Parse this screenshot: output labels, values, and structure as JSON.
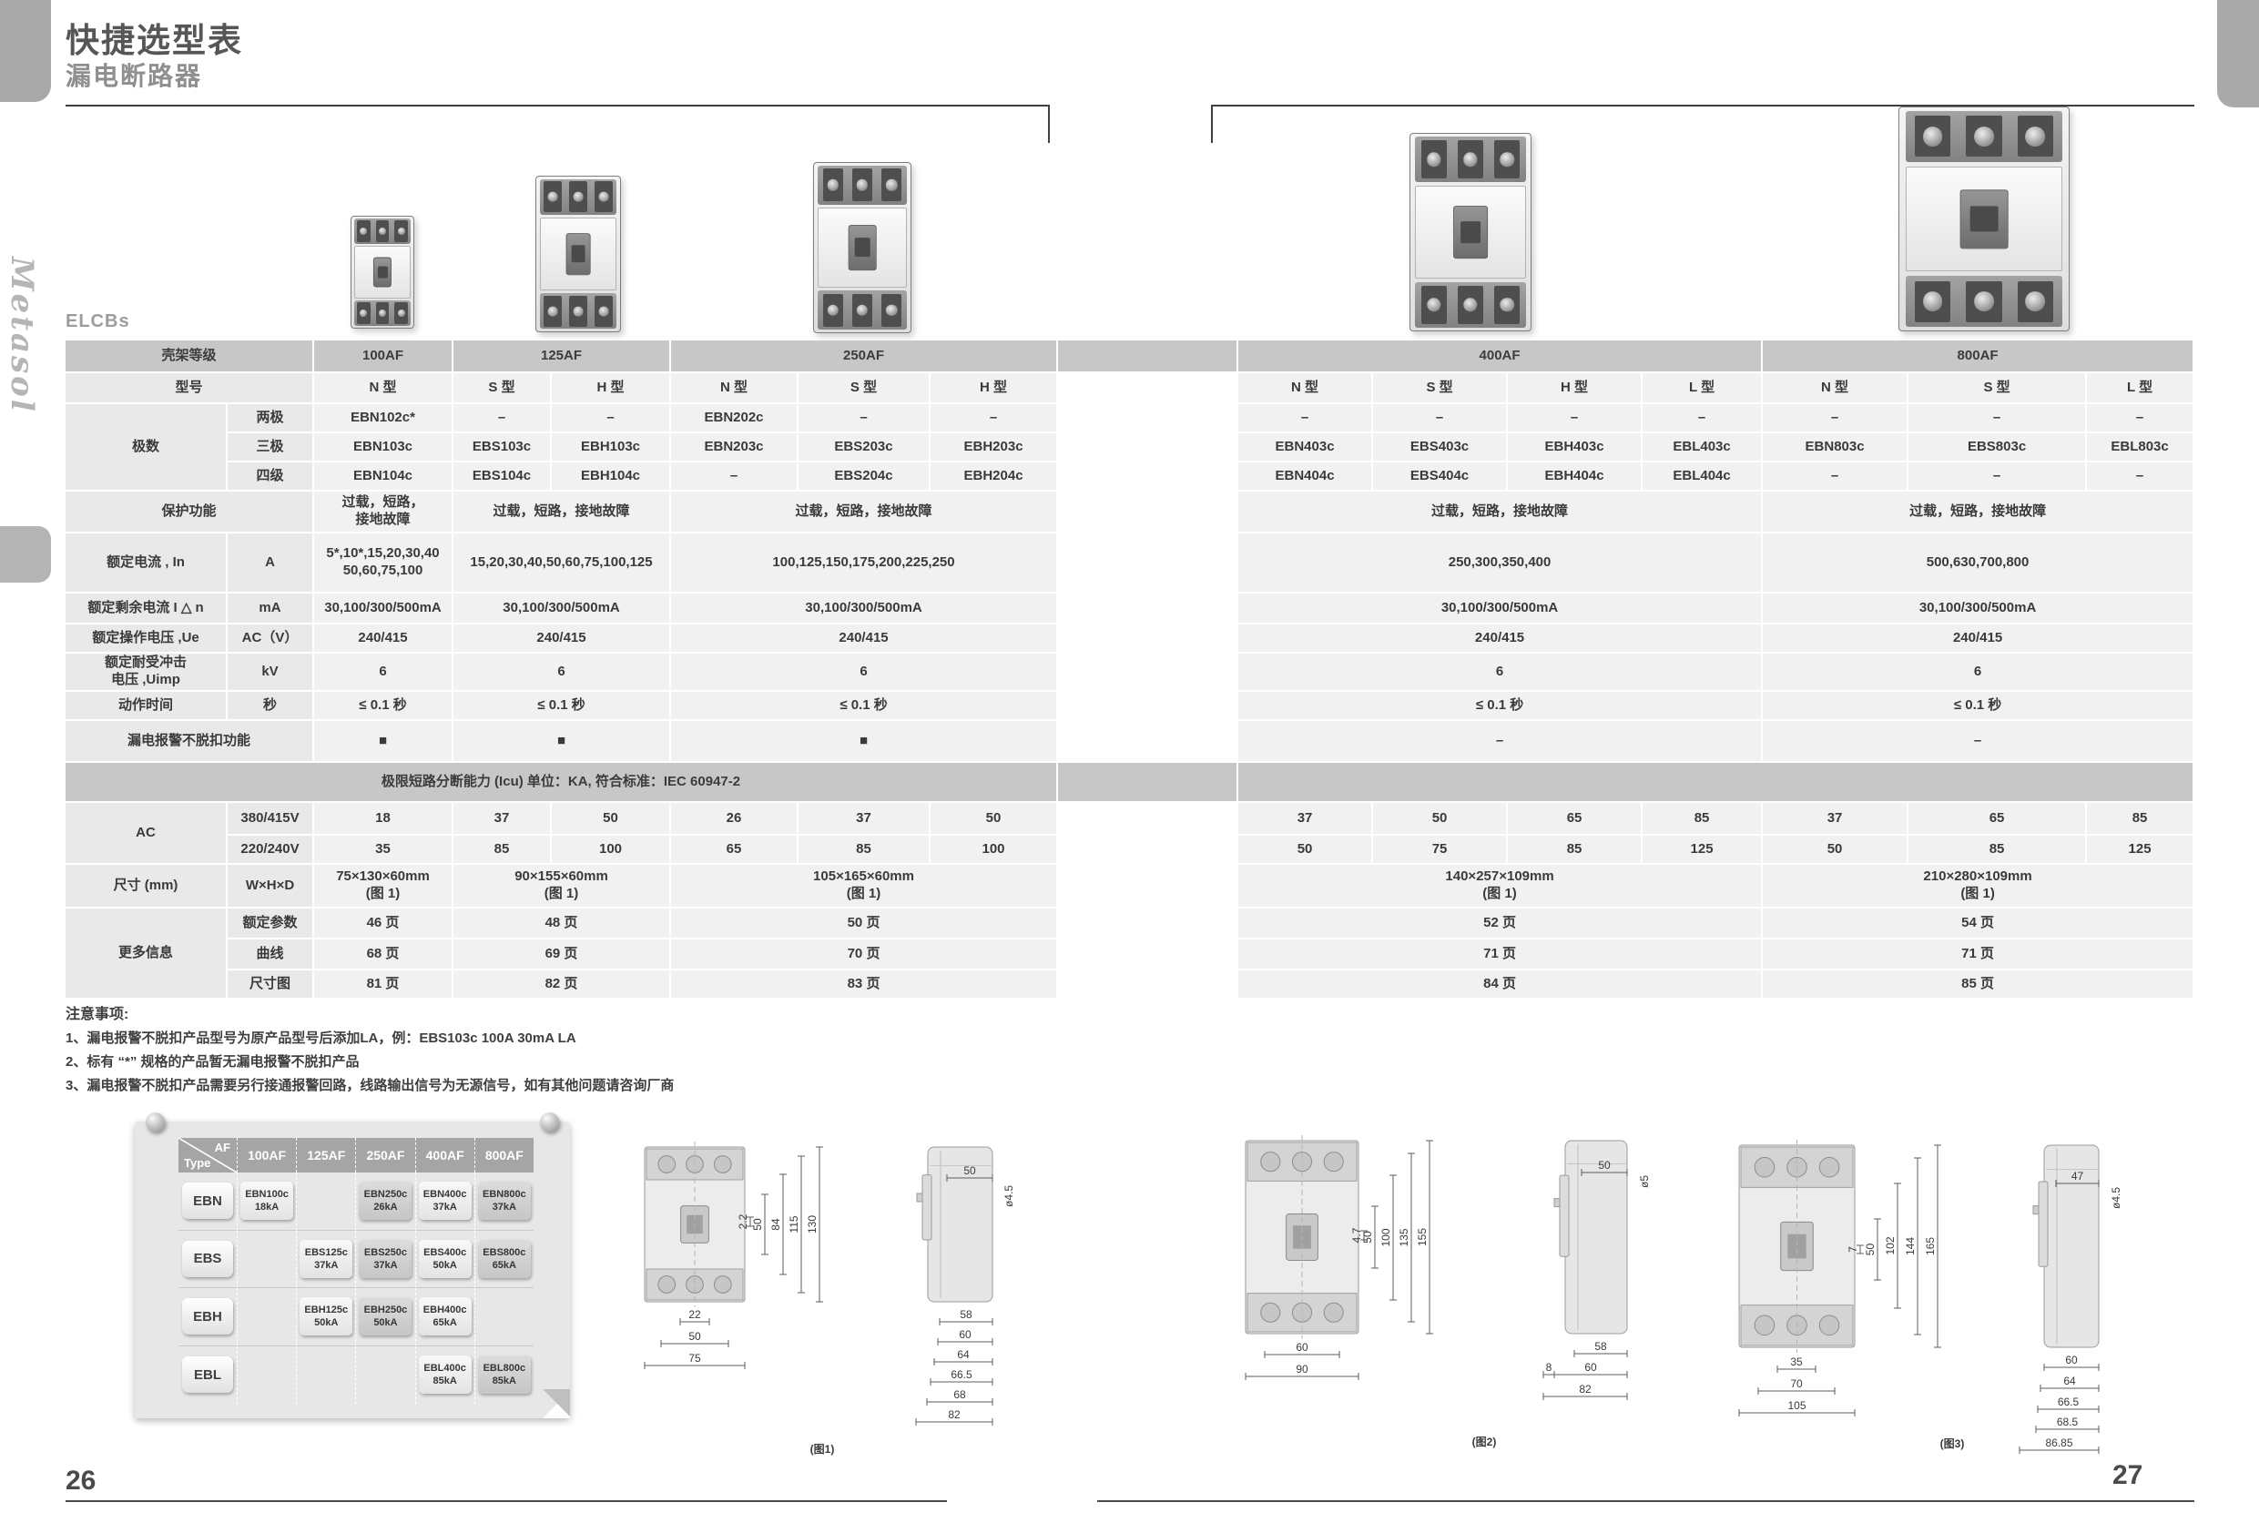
{
  "page": {
    "title": "快捷选型表",
    "subtitle": "漏电断路器",
    "brand_vertical": "Metasol",
    "product_family": "ELCBs",
    "page_number_left": "26",
    "page_number_right": "27"
  },
  "spec_table": {
    "rows": [
      {
        "h": 36,
        "cells": [
          {
            "t": "壳架等级",
            "cs": 2,
            "c": "band"
          },
          {
            "t": "100AF",
            "c": "band"
          },
          {
            "t": "125AF",
            "cs": 2,
            "c": "band"
          },
          {
            "t": "250AF",
            "cs": 3,
            "c": "band"
          },
          {
            "t": "",
            "c": "band"
          },
          {
            "t": "400AF",
            "cs": 4,
            "c": "band"
          },
          {
            "t": "800AF",
            "cs": 3,
            "c": "band"
          }
        ]
      },
      {
        "h": 34,
        "cells": [
          {
            "t": "型号",
            "cs": 2,
            "c": "lbl"
          },
          {
            "t": "N 型"
          },
          {
            "t": "S 型"
          },
          {
            "t": "H 型"
          },
          {
            "t": "N 型"
          },
          {
            "t": "S 型"
          },
          {
            "t": "H 型"
          },
          {
            "t": "",
            "c": "gut"
          },
          {
            "t": "N 型"
          },
          {
            "t": "S 型"
          },
          {
            "t": "H 型"
          },
          {
            "t": "L 型"
          },
          {
            "t": "N 型"
          },
          {
            "t": "S 型"
          },
          {
            "t": "L 型"
          }
        ]
      },
      {
        "h": 32,
        "cells": [
          {
            "t": "极数",
            "rs": 3,
            "c": "lbl top"
          },
          {
            "t": "两极",
            "c": "sub"
          },
          {
            "t": "EBN102c*"
          },
          {
            "t": "–"
          },
          {
            "t": "–"
          },
          {
            "t": "EBN202c"
          },
          {
            "t": "–"
          },
          {
            "t": "–"
          },
          {
            "t": "",
            "c": "gut"
          },
          {
            "t": "–"
          },
          {
            "t": "–"
          },
          {
            "t": "–"
          },
          {
            "t": "–"
          },
          {
            "t": "–"
          },
          {
            "t": "–"
          },
          {
            "t": "–"
          }
        ]
      },
      {
        "h": 32,
        "cells": [
          {
            "t": "三极",
            "c": "sub"
          },
          {
            "t": "EBN103c"
          },
          {
            "t": "EBS103c"
          },
          {
            "t": "EBH103c"
          },
          {
            "t": "EBN203c"
          },
          {
            "t": "EBS203c"
          },
          {
            "t": "EBH203c"
          },
          {
            "t": "",
            "c": "gut"
          },
          {
            "t": "EBN403c"
          },
          {
            "t": "EBS403c"
          },
          {
            "t": "EBH403c"
          },
          {
            "t": "EBL403c"
          },
          {
            "t": "EBN803c"
          },
          {
            "t": "EBS803c"
          },
          {
            "t": "EBL803c"
          }
        ]
      },
      {
        "h": 32,
        "cells": [
          {
            "t": "四级",
            "c": "sub"
          },
          {
            "t": "EBN104c"
          },
          {
            "t": "EBS104c"
          },
          {
            "t": "EBH104c"
          },
          {
            "t": "–"
          },
          {
            "t": "EBS204c"
          },
          {
            "t": "EBH204c"
          },
          {
            "t": "",
            "c": "gut"
          },
          {
            "t": "EBN404c"
          },
          {
            "t": "EBS404c"
          },
          {
            "t": "EBH404c"
          },
          {
            "t": "EBL404c"
          },
          {
            "t": "–"
          },
          {
            "t": "–"
          },
          {
            "t": "–"
          }
        ]
      },
      {
        "h": 46,
        "cells": [
          {
            "t": "保护功能",
            "cs": 2,
            "c": "lbl"
          },
          {
            "t": "过载，短路，\n接地故障",
            "c": "d wrap"
          },
          {
            "t": "过载，短路，接地故障",
            "cs": 2
          },
          {
            "t": "过载，短路，接地故障",
            "cs": 3
          },
          {
            "t": "",
            "c": "gut"
          },
          {
            "t": "过载，短路，接地故障",
            "cs": 4
          },
          {
            "t": "过载，短路，接地故障",
            "cs": 3
          }
        ]
      },
      {
        "h": 66,
        "cells": [
          {
            "t": "额定电流 , In",
            "c": "lbl"
          },
          {
            "t": "A",
            "c": "sub"
          },
          {
            "t": "5*,10*,15,20,30,40\n50,60,75,100",
            "c": "d wrap"
          },
          {
            "t": "15,20,30,40,50,60,75,100,125",
            "cs": 2
          },
          {
            "t": "100,125,150,175,200,225,250",
            "cs": 3
          },
          {
            "t": "",
            "c": "gut"
          },
          {
            "t": "250,300,350,400",
            "cs": 4
          },
          {
            "t": "500,630,700,800",
            "cs": 3
          }
        ]
      },
      {
        "h": 34,
        "cells": [
          {
            "t": "额定剩余电流 I △ n",
            "c": "lbl"
          },
          {
            "t": "mA",
            "c": "sub"
          },
          {
            "t": "30,100/300/500mA"
          },
          {
            "t": "30,100/300/500mA",
            "cs": 2
          },
          {
            "t": "30,100/300/500mA",
            "cs": 3
          },
          {
            "t": "",
            "c": "gut"
          },
          {
            "t": "30,100/300/500mA",
            "cs": 4
          },
          {
            "t": "30,100/300/500mA",
            "cs": 3
          }
        ]
      },
      {
        "h": 32,
        "cells": [
          {
            "t": "额定操作电压 ,Ue",
            "c": "lbl"
          },
          {
            "t": "AC（V）",
            "c": "sub"
          },
          {
            "t": "240/415"
          },
          {
            "t": "240/415",
            "cs": 2
          },
          {
            "t": "240/415",
            "cs": 3
          },
          {
            "t": "",
            "c": "gut"
          },
          {
            "t": "240/415",
            "cs": 4
          },
          {
            "t": "240/415",
            "cs": 3
          }
        ]
      },
      {
        "h": 42,
        "cells": [
          {
            "t": "额定耐受冲击\n电压 ,Uimp",
            "c": "lbl wrap"
          },
          {
            "t": "kV",
            "c": "sub"
          },
          {
            "t": "6"
          },
          {
            "t": "6",
            "cs": 2
          },
          {
            "t": "6",
            "cs": 3
          },
          {
            "t": "",
            "c": "gut"
          },
          {
            "t": "6",
            "cs": 4
          },
          {
            "t": "6",
            "cs": 3
          }
        ]
      },
      {
        "h": 32,
        "cells": [
          {
            "t": "动作时间",
            "c": "lbl"
          },
          {
            "t": "秒",
            "c": "sub"
          },
          {
            "t": "≤ 0.1 秒"
          },
          {
            "t": "≤ 0.1 秒",
            "cs": 2
          },
          {
            "t": "≤ 0.1 秒",
            "cs": 3
          },
          {
            "t": "",
            "c": "gut"
          },
          {
            "t": "≤ 0.1 秒",
            "cs": 4
          },
          {
            "t": "≤ 0.1 秒",
            "cs": 3
          }
        ]
      },
      {
        "h": 46,
        "cells": [
          {
            "t": "漏电报警不脱扣功能",
            "cs": 2,
            "c": "lbl"
          },
          {
            "t": "■",
            "c": "d sq"
          },
          {
            "t": "■",
            "cs": 2,
            "c": "d sq"
          },
          {
            "t": "■",
            "cs": 3,
            "c": "d sq"
          },
          {
            "t": "",
            "c": "gut"
          },
          {
            "t": "–",
            "cs": 4
          },
          {
            "t": "–",
            "cs": 3
          }
        ]
      },
      {
        "h": 44,
        "cells": [
          {
            "t": "极限短路分断能力 (Icu) 单位：KA, 符合标准：IEC 60947-2",
            "cs": 8,
            "c": "band icu"
          },
          {
            "t": "",
            "c": "band"
          },
          {
            "t": "",
            "cs": 7,
            "c": "band"
          }
        ]
      },
      {
        "h": 36,
        "cells": [
          {
            "t": "AC",
            "rs": 2,
            "c": "lbl top"
          },
          {
            "t": "380/415V",
            "c": "sub"
          },
          {
            "t": "18"
          },
          {
            "t": "37"
          },
          {
            "t": "50"
          },
          {
            "t": "26"
          },
          {
            "t": "37"
          },
          {
            "t": "50"
          },
          {
            "t": "",
            "c": "gut"
          },
          {
            "t": "37"
          },
          {
            "t": "50"
          },
          {
            "t": "65"
          },
          {
            "t": "85"
          },
          {
            "t": "37"
          },
          {
            "t": "65"
          },
          {
            "t": "85"
          }
        ]
      },
      {
        "h": 32,
        "cells": [
          {
            "t": "220/240V",
            "c": "sub"
          },
          {
            "t": "35"
          },
          {
            "t": "85"
          },
          {
            "t": "100"
          },
          {
            "t": "65"
          },
          {
            "t": "85"
          },
          {
            "t": "100"
          },
          {
            "t": "",
            "c": "gut"
          },
          {
            "t": "50"
          },
          {
            "t": "75"
          },
          {
            "t": "85"
          },
          {
            "t": "125"
          },
          {
            "t": "50"
          },
          {
            "t": "85"
          },
          {
            "t": "125"
          }
        ]
      },
      {
        "h": 48,
        "cells": [
          {
            "t": "尺寸 (mm)",
            "c": "lbl"
          },
          {
            "t": "W×H×D",
            "c": "sub"
          },
          {
            "t": "75×130×60mm\n(图 1)",
            "c": "d wrap"
          },
          {
            "t": "90×155×60mm\n(图 1)",
            "cs": 2,
            "c": "d wrap"
          },
          {
            "t": "105×165×60mm\n(图 1)",
            "cs": 3,
            "c": "d wrap"
          },
          {
            "t": "",
            "c": "gut"
          },
          {
            "t": "140×257×109mm\n(图 1)",
            "cs": 4,
            "c": "d wrap"
          },
          {
            "t": "210×280×109mm\n(图 1)",
            "cs": 3,
            "c": "d wrap"
          }
        ]
      },
      {
        "h": 34,
        "cells": [
          {
            "t": "更多信息",
            "rs": 3,
            "c": "lbl top"
          },
          {
            "t": "额定参数",
            "c": "sub"
          },
          {
            "t": "46 页"
          },
          {
            "t": "48 页",
            "cs": 2
          },
          {
            "t": "50 页",
            "cs": 3
          },
          {
            "t": "",
            "c": "gut"
          },
          {
            "t": "52 页",
            "cs": 4
          },
          {
            "t": "54 页",
            "cs": 3
          }
        ]
      },
      {
        "h": 34,
        "cells": [
          {
            "t": "曲线",
            "c": "sub"
          },
          {
            "t": "68 页"
          },
          {
            "t": "69 页",
            "cs": 2
          },
          {
            "t": "70 页",
            "cs": 3
          },
          {
            "t": "",
            "c": "gut"
          },
          {
            "t": "71 页",
            "cs": 4
          },
          {
            "t": "71 页",
            "cs": 3
          }
        ]
      },
      {
        "h": 32,
        "cells": [
          {
            "t": "尺寸图",
            "c": "sub"
          },
          {
            "t": "81 页"
          },
          {
            "t": "82 页",
            "cs": 2
          },
          {
            "t": "83 页",
            "cs": 3
          },
          {
            "t": "",
            "c": "gut"
          },
          {
            "t": "84 页",
            "cs": 4
          },
          {
            "t": "85 页",
            "cs": 3
          }
        ]
      }
    ]
  },
  "notes": {
    "title": "注意事项:",
    "items": [
      "1、漏电报警不脱扣产品型号为原产品型号后添加LA，例：EBS103c 100A 30mA LA",
      "2、标有 “*” 规格的产品暂无漏电报警不脱扣产品",
      "3、漏电报警不脱扣产品需要另行接通报警回路，线路输出信号为无源信号，如有其他问题请咨询厂商"
    ]
  },
  "matrix": {
    "corner_top": "AF",
    "corner_bottom": "Type",
    "col_headers": [
      "100AF",
      "125AF",
      "250AF",
      "400AF",
      "800AF"
    ],
    "rows": [
      {
        "type": "EBN",
        "cells": [
          {
            "model": "EBN100c",
            "ka": "18kA",
            "hl": false
          },
          null,
          {
            "model": "EBN250c",
            "ka": "26kA",
            "hl": true
          },
          {
            "model": "EBN400c",
            "ka": "37kA",
            "hl": false
          },
          {
            "model": "EBN800c",
            "ka": "37kA",
            "hl": true
          }
        ]
      },
      {
        "type": "EBS",
        "cells": [
          null,
          {
            "model": "EBS125c",
            "ka": "37kA",
            "hl": false
          },
          {
            "model": "EBS250c",
            "ka": "37kA",
            "hl": true
          },
          {
            "model": "EBS400c",
            "ka": "50kA",
            "hl": false
          },
          {
            "model": "EBS800c",
            "ka": "65kA",
            "hl": true
          }
        ]
      },
      {
        "type": "EBH",
        "cells": [
          null,
          {
            "model": "EBH125c",
            "ka": "50kA",
            "hl": false
          },
          {
            "model": "EBH250c",
            "ka": "50kA",
            "hl": true
          },
          {
            "model": "EBH400c",
            "ka": "65kA",
            "hl": false
          },
          null
        ]
      },
      {
        "type": "EBL",
        "cells": [
          null,
          null,
          null,
          {
            "model": "EBL400c",
            "ka": "85kA",
            "hl": false
          },
          {
            "model": "EBL800c",
            "ka": "85kA",
            "hl": true
          }
        ]
      }
    ]
  },
  "figures": [
    {
      "label": "(图1)",
      "front_w": [
        "22",
        "50",
        "75"
      ],
      "front_h": [
        "2.2",
        "50",
        "84",
        "115",
        "130"
      ],
      "side_top": "50",
      "side_hole": "ø4.5",
      "depths": [
        "58",
        "60",
        "64",
        "66.5",
        "68",
        "82"
      ]
    },
    {
      "label": "(图2)",
      "front_w": [
        "60",
        "90"
      ],
      "front_h": [
        "4.7",
        "50",
        "100",
        "135",
        "155"
      ],
      "side_top": "50",
      "side_hole": "ø5",
      "depths": [
        "58",
        "8",
        "60",
        "82"
      ]
    },
    {
      "label": "(图3)",
      "front_w": [
        "35",
        "70",
        "105"
      ],
      "front_h": [
        "7",
        "50",
        "102",
        "144",
        "165"
      ],
      "side_top": "47",
      "side_hole": "ø4.5",
      "depths": [
        "60",
        "64",
        "66.5",
        "68.5",
        "86.85"
      ]
    }
  ]
}
